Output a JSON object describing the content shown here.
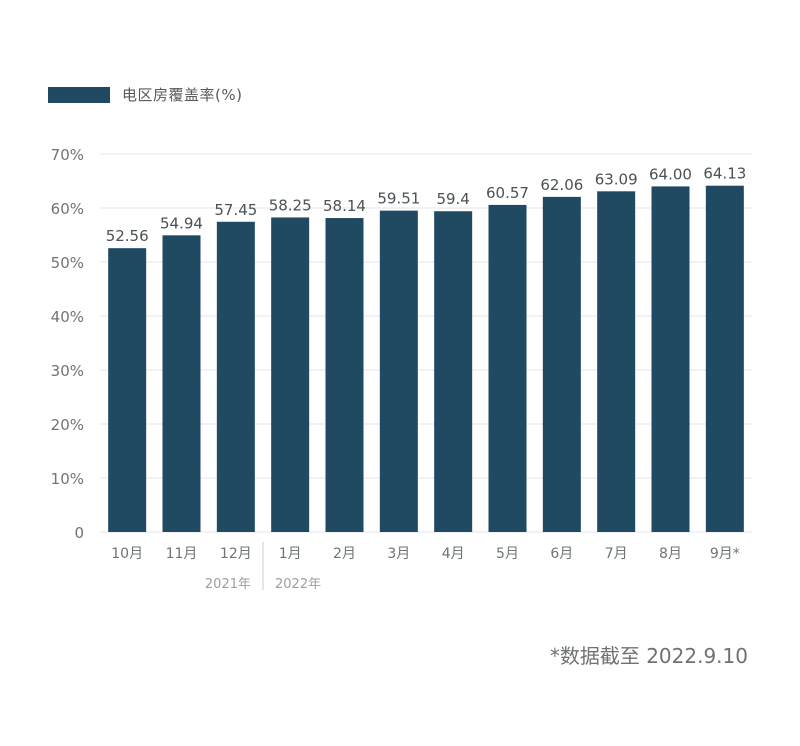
{
  "chart_data": {
    "type": "bar",
    "legend": {
      "label": "电区房覆盖率(%)",
      "color": "#1f4a62"
    },
    "categories": [
      "10月",
      "11月",
      "12月",
      "1月",
      "2月",
      "3月",
      "4月",
      "5月",
      "6月",
      "7月",
      "8月",
      "9月*"
    ],
    "values": [
      52.56,
      54.94,
      57.45,
      58.25,
      58.14,
      59.51,
      59.4,
      60.57,
      62.06,
      63.09,
      64.0,
      64.13
    ],
    "value_labels": [
      "52.56",
      "54.94",
      "57.45",
      "58.25",
      "58.14",
      "59.51",
      "59.4",
      "60.57",
      "62.06",
      "63.09",
      "64.00",
      "64.13"
    ],
    "yticks": [
      "0",
      "10%",
      "20%",
      "30%",
      "40%",
      "50%",
      "60%",
      "70%"
    ],
    "ylim": [
      0,
      70
    ],
    "year_groups": [
      {
        "label": "2021年",
        "start": 0,
        "end": 2
      },
      {
        "label": "2022年",
        "start": 3,
        "end": 11
      }
    ],
    "grid": true,
    "colors": {
      "bar": "#1f4a62",
      "grid": "#e4e6e8",
      "axis_text": "#6f7477",
      "value_text": "#4a5256"
    }
  },
  "footnote": "*数据截至 2022.9.10"
}
